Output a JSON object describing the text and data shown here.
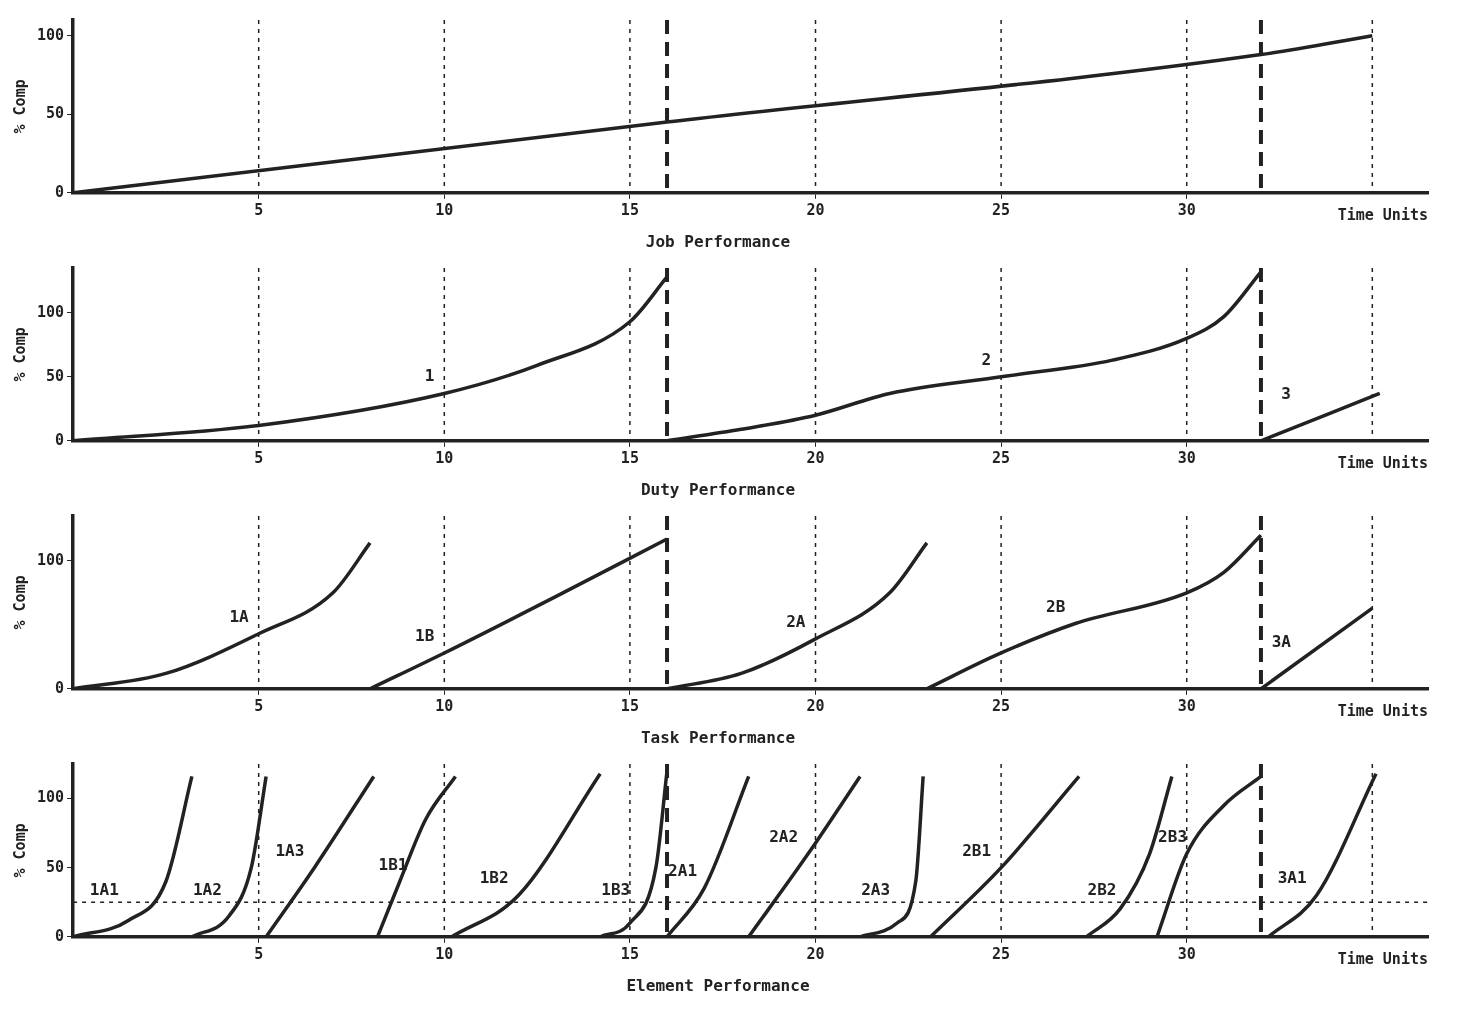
{
  "chart_data": [
    {
      "type": "line",
      "title": "Job Performance",
      "xlabel": "Time Units",
      "ylabel": "% Comp",
      "xlim": [
        0,
        36.5
      ],
      "ylim": [
        0,
        110
      ],
      "xticks": [
        5,
        10,
        15,
        20,
        25,
        30
      ],
      "yticks": [
        0,
        50,
        100
      ],
      "grid": false,
      "legend": false,
      "marker": "none",
      "line_style": "solid",
      "series": [
        {
          "color": "#222222",
          "x": [
            0,
            16,
            32,
            35
          ],
          "values": [
            0,
            45,
            88,
            100
          ]
        }
      ],
      "ref_lines": [
        {
          "axis": "x",
          "value": 5,
          "line_style": "dotted"
        },
        {
          "axis": "x",
          "value": 10,
          "line_style": "dotted"
        },
        {
          "axis": "x",
          "value": 15,
          "line_style": "dotted"
        },
        {
          "axis": "x",
          "value": 20,
          "line_style": "dotted"
        },
        {
          "axis": "x",
          "value": 25,
          "line_style": "dotted"
        },
        {
          "axis": "x",
          "value": 30,
          "line_style": "dotted"
        },
        {
          "axis": "x",
          "value": 35,
          "line_style": "dotted"
        },
        {
          "axis": "x",
          "value": 16,
          "line_style": "dashed"
        },
        {
          "axis": "x",
          "value": 32,
          "line_style": "dashed"
        }
      ]
    },
    {
      "type": "line",
      "title": "Duty Performance",
      "xlabel": "Time Units",
      "ylabel": "% Comp",
      "xlim": [
        0,
        36.5
      ],
      "ylim": [
        0,
        135
      ],
      "xticks": [
        5,
        10,
        15,
        20,
        25,
        30
      ],
      "yticks": [
        0,
        50,
        100
      ],
      "grid": false,
      "legend": false,
      "marker": "none",
      "line_style": "solid",
      "series": [
        {
          "name": "1",
          "color": "#222222",
          "x": [
            0,
            5,
            10,
            12.5,
            15,
            16
          ],
          "values": [
            0,
            12,
            37,
            59,
            93,
            128
          ]
        },
        {
          "name": "2",
          "color": "#222222",
          "x": [
            16,
            18,
            20,
            22,
            25,
            28,
            30,
            31,
            32
          ],
          "values": [
            0,
            9,
            20,
            37,
            50,
            63,
            80,
            97,
            132
          ]
        },
        {
          "name": "3",
          "color": "#222222",
          "x": [
            32,
            35.2
          ],
          "values": [
            0,
            37
          ]
        }
      ],
      "ref_lines": [
        {
          "axis": "x",
          "value": 5,
          "line_style": "dotted"
        },
        {
          "axis": "x",
          "value": 10,
          "line_style": "dotted"
        },
        {
          "axis": "x",
          "value": 15,
          "line_style": "dotted"
        },
        {
          "axis": "x",
          "value": 20,
          "line_style": "dotted"
        },
        {
          "axis": "x",
          "value": 25,
          "line_style": "dotted"
        },
        {
          "axis": "x",
          "value": 30,
          "line_style": "dotted"
        },
        {
          "axis": "x",
          "value": 35,
          "line_style": "dotted"
        },
        {
          "axis": "x",
          "value": 16,
          "line_style": "dashed"
        },
        {
          "axis": "x",
          "value": 32,
          "line_style": "dashed"
        }
      ]
    },
    {
      "type": "line",
      "title": "Task Performance",
      "xlabel": "Time Units",
      "ylabel": "% Comp",
      "xlim": [
        0,
        36.5
      ],
      "ylim": [
        0,
        135
      ],
      "xticks": [
        5,
        10,
        15,
        20,
        25,
        30
      ],
      "yticks": [
        0,
        100
      ],
      "grid": false,
      "legend": false,
      "marker": "none",
      "line_style": "solid",
      "series": [
        {
          "name": "1A",
          "color": "#222222",
          "x": [
            0,
            2.5,
            5,
            7,
            8
          ],
          "values": [
            0,
            12,
            43,
            75,
            114
          ]
        },
        {
          "name": "1B",
          "color": "#222222",
          "x": [
            8,
            10,
            13,
            16
          ],
          "values": [
            0,
            28,
            72,
            117
          ]
        },
        {
          "name": "2A",
          "color": "#222222",
          "x": [
            16,
            18,
            20,
            22,
            23
          ],
          "values": [
            0,
            12,
            39,
            75,
            114
          ]
        },
        {
          "name": "2B",
          "color": "#222222",
          "x": [
            23,
            25,
            27,
            30,
            31,
            32
          ],
          "values": [
            0,
            28,
            51,
            75,
            91,
            120
          ]
        },
        {
          "name": "3A",
          "color": "#222222",
          "x": [
            32,
            35
          ],
          "values": [
            0,
            63
          ]
        }
      ],
      "ref_lines": [
        {
          "axis": "x",
          "value": 5,
          "line_style": "dotted"
        },
        {
          "axis": "x",
          "value": 10,
          "line_style": "dotted"
        },
        {
          "axis": "x",
          "value": 15,
          "line_style": "dotted"
        },
        {
          "axis": "x",
          "value": 20,
          "line_style": "dotted"
        },
        {
          "axis": "x",
          "value": 25,
          "line_style": "dotted"
        },
        {
          "axis": "x",
          "value": 30,
          "line_style": "dotted"
        },
        {
          "axis": "x",
          "value": 35,
          "line_style": "dotted"
        },
        {
          "axis": "x",
          "value": 16,
          "line_style": "dashed"
        },
        {
          "axis": "x",
          "value": 32,
          "line_style": "dashed"
        }
      ]
    },
    {
      "type": "line",
      "title": "Element Performance",
      "xlabel": "Time Units",
      "ylabel": "% Comp",
      "xlim": [
        0,
        36.5
      ],
      "ylim": [
        0,
        125
      ],
      "xticks": [
        5,
        10,
        15,
        20,
        25,
        30
      ],
      "yticks": [
        0,
        50,
        100
      ],
      "grid": false,
      "legend": false,
      "marker": "none",
      "line_style": "solid",
      "series": [
        {
          "name": "1A1",
          "color": "#222222",
          "x": [
            0,
            1.5,
            2.5,
            3.2
          ],
          "values": [
            0,
            12,
            40,
            116
          ]
        },
        {
          "name": "1A2",
          "color": "#222222",
          "x": [
            3.2,
            4.2,
            4.8,
            5.2
          ],
          "values": [
            0,
            15,
            50,
            116
          ]
        },
        {
          "name": "1A3",
          "color": "#222222",
          "x": [
            5.2,
            6.5,
            8.1
          ],
          "values": [
            0,
            50,
            116
          ]
        },
        {
          "name": "1B1",
          "color": "#222222",
          "x": [
            8.2,
            8.8,
            9.5,
            10.3
          ],
          "values": [
            0,
            40,
            85,
            116
          ]
        },
        {
          "name": "1B2",
          "color": "#222222",
          "x": [
            10.2,
            12,
            14.2
          ],
          "values": [
            0,
            30,
            118
          ]
        },
        {
          "name": "1B3",
          "color": "#222222",
          "x": [
            14.2,
            15,
            15.7,
            16
          ],
          "values": [
            0,
            10,
            50,
            120
          ]
        },
        {
          "name": "2A1",
          "color": "#222222",
          "x": [
            16,
            17,
            18.2
          ],
          "values": [
            0,
            35,
            116
          ]
        },
        {
          "name": "2A2",
          "color": "#222222",
          "x": [
            18.2,
            19.8,
            21.2
          ],
          "values": [
            0,
            60,
            116
          ]
        },
        {
          "name": "2A3",
          "color": "#222222",
          "x": [
            21.2,
            22.2,
            22.7,
            22.9
          ],
          "values": [
            0,
            10,
            40,
            116
          ]
        },
        {
          "name": "2B1",
          "color": "#222222",
          "x": [
            23.1,
            25,
            27.1
          ],
          "values": [
            0,
            50,
            116
          ]
        },
        {
          "name": "2B2",
          "color": "#222222",
          "x": [
            27.3,
            28.2,
            29,
            29.6
          ],
          "values": [
            0,
            20,
            60,
            116
          ]
        },
        {
          "name": "2B3",
          "color": "#222222",
          "x": [
            29.2,
            30,
            31,
            32
          ],
          "values": [
            0,
            60,
            95,
            116
          ]
        },
        {
          "name": "3A1",
          "color": "#222222",
          "x": [
            32.2,
            33.5,
            35.1
          ],
          "values": [
            0,
            30,
            118
          ]
        }
      ],
      "ref_lines": [
        {
          "axis": "x",
          "value": 5,
          "line_style": "dotted"
        },
        {
          "axis": "x",
          "value": 10,
          "line_style": "dotted"
        },
        {
          "axis": "x",
          "value": 15,
          "line_style": "dotted"
        },
        {
          "axis": "x",
          "value": 20,
          "line_style": "dotted"
        },
        {
          "axis": "x",
          "value": 25,
          "line_style": "dotted"
        },
        {
          "axis": "x",
          "value": 30,
          "line_style": "dotted"
        },
        {
          "axis": "x",
          "value": 35,
          "line_style": "dotted"
        },
        {
          "axis": "x",
          "value": 16,
          "line_style": "dashed"
        },
        {
          "axis": "x",
          "value": 32,
          "line_style": "dashed"
        },
        {
          "axis": "y",
          "value": 25,
          "line_style": "dotted"
        }
      ]
    }
  ]
}
